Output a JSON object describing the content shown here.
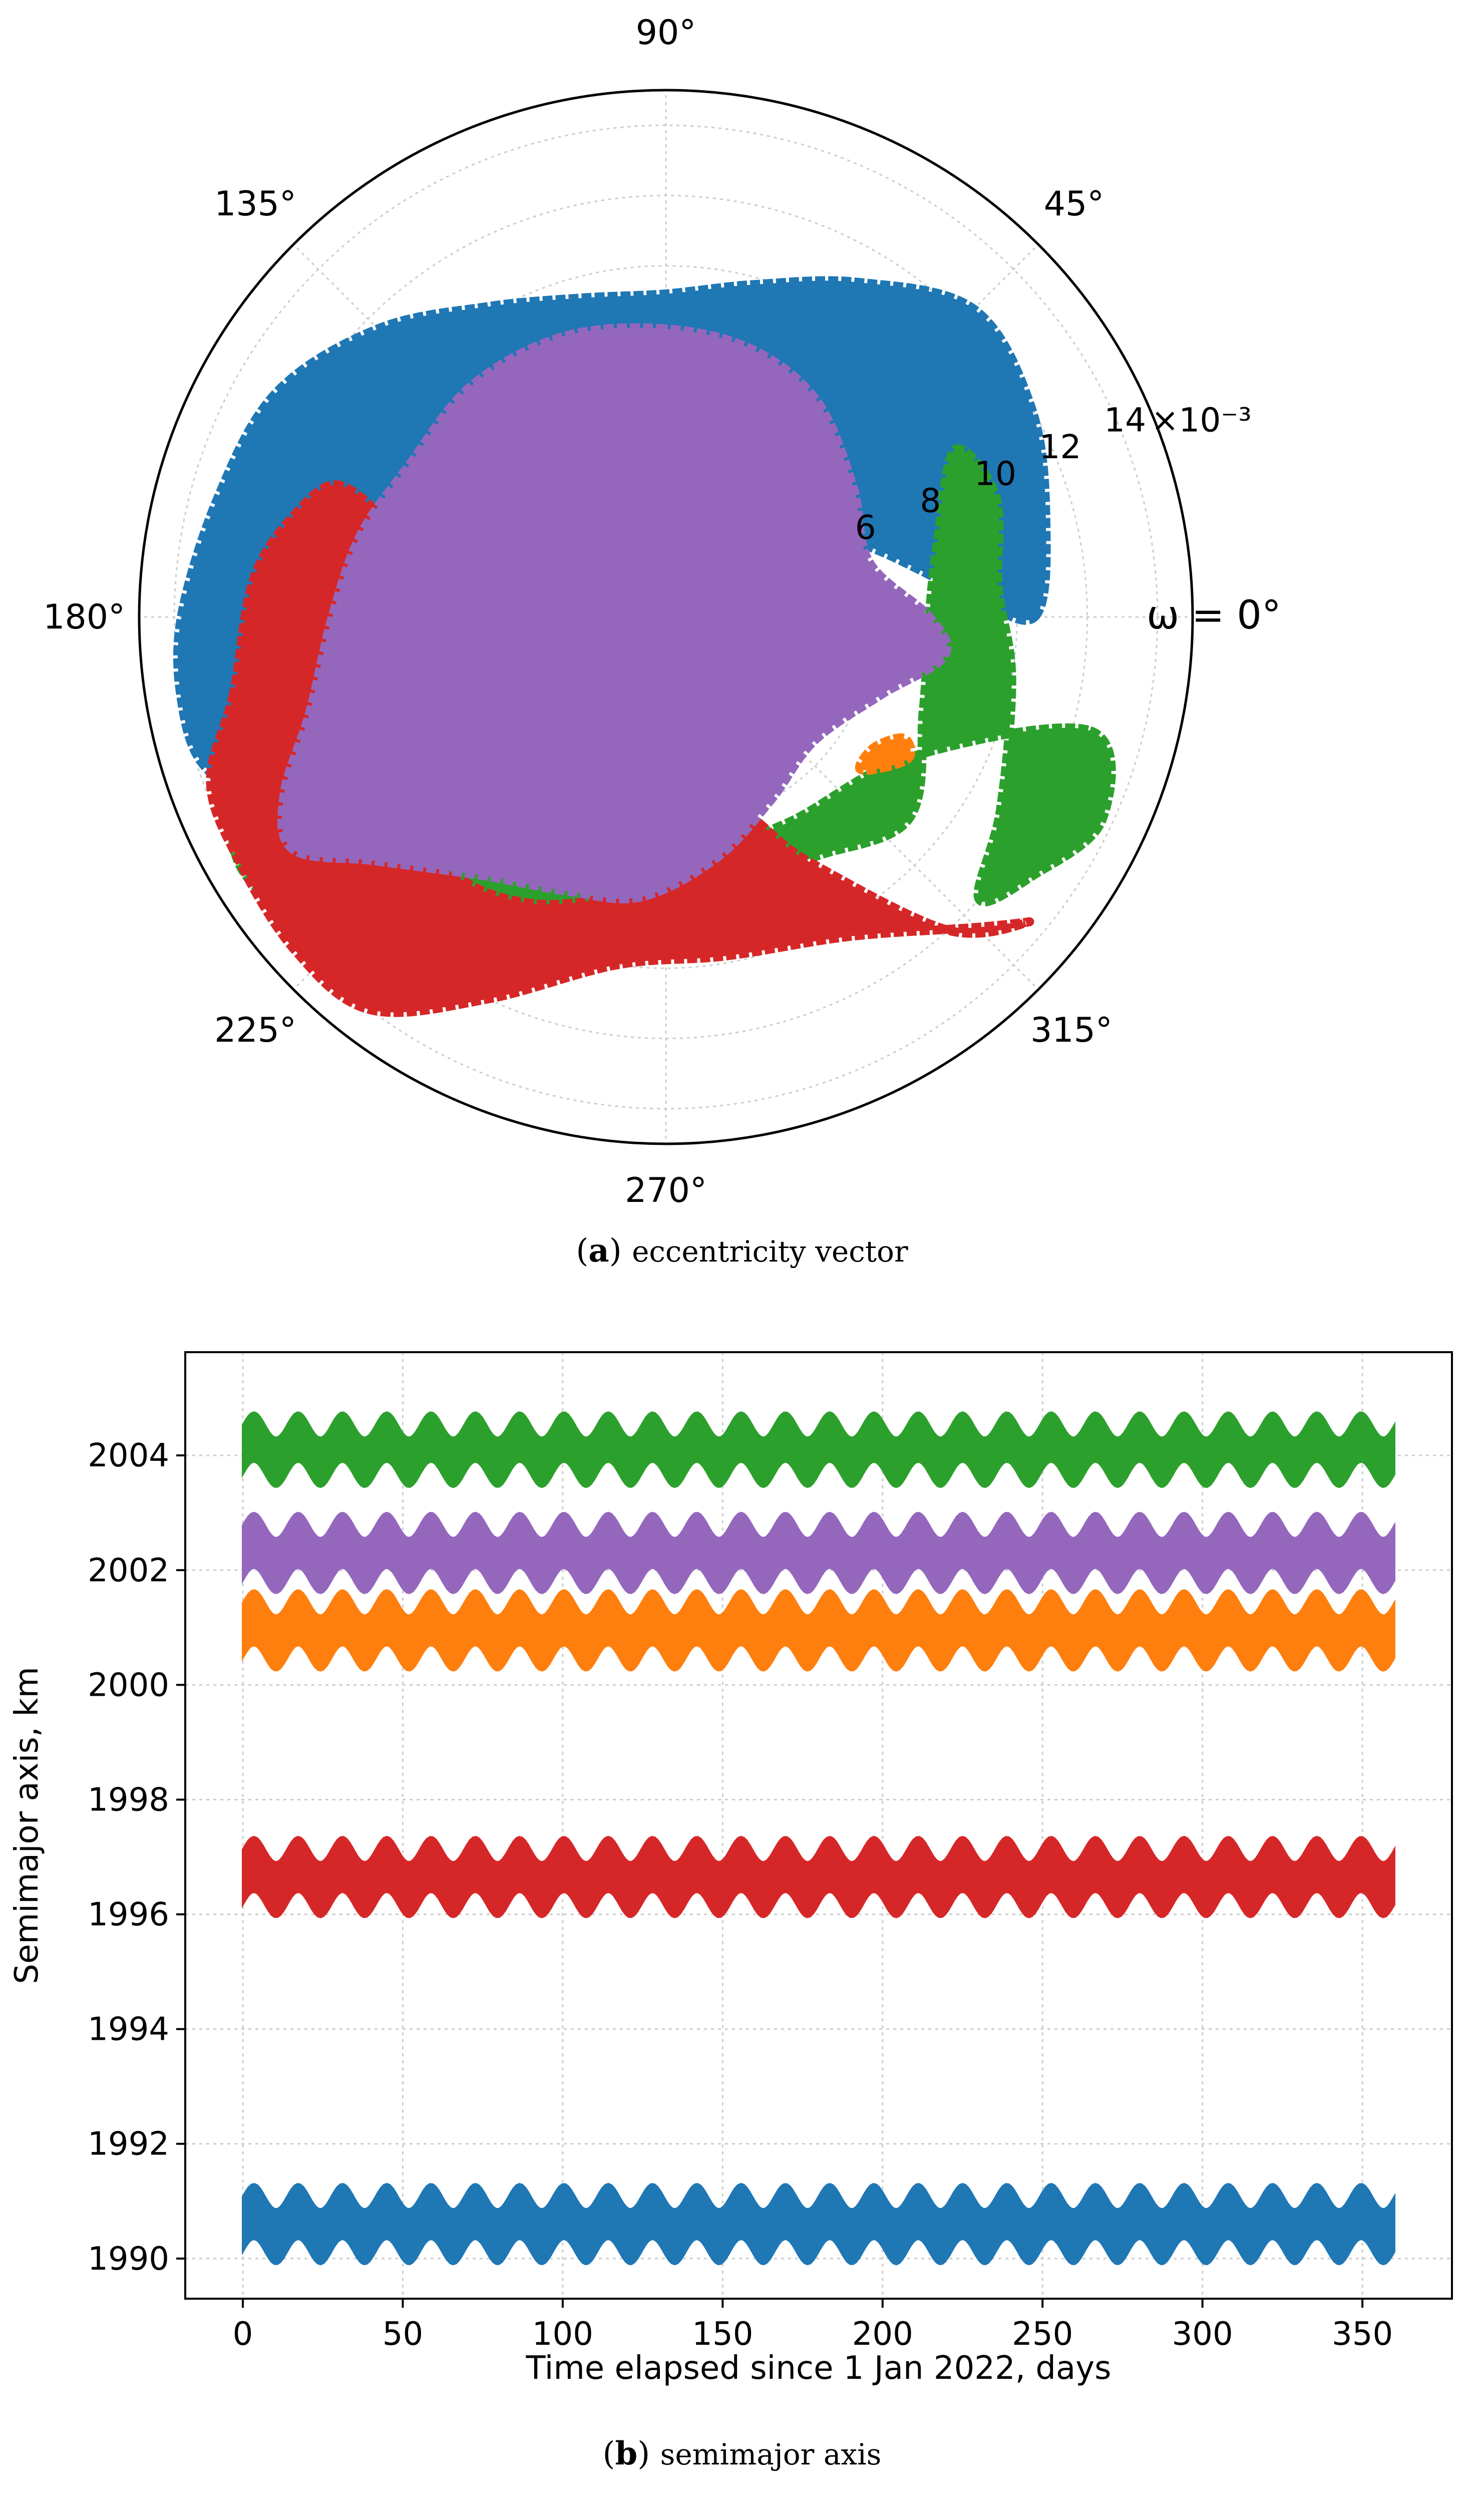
{
  "colors": {
    "blue": "#1f77b4",
    "orange": "#ff7f0e",
    "green": "#2ca02c",
    "red": "#d62728",
    "purple": "#9467bd",
    "grid": "#cccccc"
  },
  "captions": {
    "a_label": "a",
    "a_text": "eccentricity vector",
    "b_label": "b",
    "b_text": "semimajor axis"
  },
  "chart_data": [
    {
      "type": "scatter",
      "projection": "polar",
      "title": "",
      "angle_label": "ω = 0°",
      "angle_ticks": [
        "ω = 0°",
        "45°",
        "90°",
        "135°",
        "180°",
        "225°",
        "270°",
        "315°"
      ],
      "radial_ticks": [
        "6",
        "8",
        "10",
        "12",
        "14"
      ],
      "radial_offset_label": "×10⁻³",
      "rlim": [
        0,
        0.015
      ],
      "grid": true,
      "series": [
        {
          "color": "#1f77b4",
          "envelope": [
            [
              0,
              0.0105
            ],
            [
              15,
              0.0112
            ],
            [
              30,
              0.012
            ],
            [
              45,
              0.0124
            ],
            [
              60,
              0.011
            ],
            [
              75,
              0.0098
            ],
            [
              90,
              0.0092
            ],
            [
              105,
              0.0094
            ],
            [
              120,
              0.0102
            ],
            [
              135,
              0.0116
            ],
            [
              150,
              0.0128
            ],
            [
              165,
              0.0132
            ],
            [
              180,
              0.0138
            ],
            [
              190,
              0.014
            ],
            [
              198,
              0.0138
            ],
            [
              205,
              0.0125
            ],
            [
              200,
              0.01
            ],
            [
              190,
              0.007
            ],
            [
              175,
              0.0045
            ],
            [
              150,
              0.003
            ],
            [
              110,
              0.0028
            ],
            [
              70,
              0.003
            ],
            [
              40,
              0.004
            ],
            [
              20,
              0.006
            ],
            [
              5,
              0.0085
            ]
          ]
        },
        {
          "color": "#2ca02c",
          "envelope": [
            [
              345,
              0.0125
            ],
            [
              335,
              0.0137
            ],
            [
              325,
              0.0128
            ],
            [
              318,
              0.012
            ],
            [
              330,
              0.011
            ],
            [
              350,
              0.01
            ],
            [
              5,
              0.0095
            ],
            [
              20,
              0.01
            ],
            [
              30,
              0.0095
            ],
            [
              15,
              0.008
            ],
            [
              0,
              0.0075
            ],
            [
              340,
              0.0078
            ],
            [
              320,
              0.009
            ],
            [
              300,
              0.008
            ],
            [
              280,
              0.0085
            ],
            [
              260,
              0.009
            ],
            [
              240,
              0.0105
            ],
            [
              225,
              0.0128
            ],
            [
              213,
              0.014
            ],
            [
              205,
              0.0135
            ],
            [
              200,
              0.011
            ],
            [
              215,
              0.0095
            ],
            [
              240,
              0.008
            ],
            [
              270,
              0.007
            ],
            [
              300,
              0.0068
            ],
            [
              330,
              0.008
            ]
          ]
        },
        {
          "color": "#d62728",
          "envelope": [
            [
              190,
              0.0125
            ],
            [
              200,
              0.0138
            ],
            [
              210,
              0.014
            ],
            [
              222,
              0.0142
            ],
            [
              233,
              0.014
            ],
            [
              245,
              0.012
            ],
            [
              262,
              0.01
            ],
            [
              280,
              0.0098
            ],
            [
              300,
              0.0105
            ],
            [
              315,
              0.0125
            ],
            [
              320,
              0.0135
            ],
            [
              312,
              0.012
            ],
            [
              300,
              0.008
            ],
            [
              290,
              0.006
            ],
            [
              275,
              0.0075
            ],
            [
              262,
              0.008
            ],
            [
              245,
              0.009
            ],
            [
              230,
              0.0095
            ],
            [
              210,
              0.0095
            ],
            [
              195,
              0.0095
            ],
            [
              180,
              0.009
            ],
            [
              165,
              0.008
            ],
            [
              158,
              0.01
            ],
            [
              165,
              0.011
            ],
            [
              175,
              0.0118
            ]
          ]
        },
        {
          "color": "#9467bd",
          "envelope": [
            [
              90,
              0.0082
            ],
            [
              110,
              0.0085
            ],
            [
              130,
              0.0086
            ],
            [
              150,
              0.0085
            ],
            [
              165,
              0.009
            ],
            [
              180,
              0.0095
            ],
            [
              195,
              0.0105
            ],
            [
              205,
              0.012
            ],
            [
              212,
              0.0125
            ],
            [
              220,
              0.0108
            ],
            [
              235,
              0.009
            ],
            [
              250,
              0.0083
            ],
            [
              265,
              0.008
            ],
            [
              282,
              0.007
            ],
            [
              300,
              0.006
            ],
            [
              320,
              0.0055
            ],
            [
              340,
              0.0065
            ],
            [
              352,
              0.008
            ],
            [
              0,
              0.0075
            ],
            [
              15,
              0.006
            ],
            [
              35,
              0.0065
            ],
            [
              55,
              0.0075
            ],
            [
              72,
              0.008
            ]
          ]
        },
        {
          "color": "#ff7f0e",
          "envelope": [
            [
              325,
              0.0075
            ],
            [
              330,
              0.008
            ],
            [
              333,
              0.0076
            ],
            [
              328,
              0.007
            ],
            [
              322,
              0.007
            ]
          ]
        }
      ]
    },
    {
      "type": "line",
      "title": "",
      "xlabel": "Time elapsed since 1 Jan 2022, days",
      "ylabel": "Semimajor axis, km",
      "xlim": [
        -18,
        378
      ],
      "ylim": [
        1989.3,
        2005.8
      ],
      "xticks": [
        0,
        50,
        100,
        150,
        200,
        250,
        300,
        350
      ],
      "yticks": [
        1990,
        1992,
        1994,
        1996,
        1998,
        2000,
        2002,
        2004
      ],
      "grid": true,
      "x_range": [
        0,
        360
      ],
      "series": [
        {
          "color": "#2ca02c",
          "low": 2003.45,
          "high": 2004.75,
          "mid": 2004.1
        },
        {
          "color": "#9467bd",
          "low": 2001.6,
          "high": 2003.0,
          "mid": 2002.3
        },
        {
          "color": "#ff7f0e",
          "low": 2000.25,
          "high": 2001.65,
          "mid": 2000.95
        },
        {
          "color": "#d62728",
          "low": 1995.95,
          "high": 1997.35,
          "mid": 1996.65
        },
        {
          "color": "#1f77b4",
          "low": 1989.9,
          "high": 1991.3,
          "mid": 1990.6
        }
      ]
    }
  ]
}
